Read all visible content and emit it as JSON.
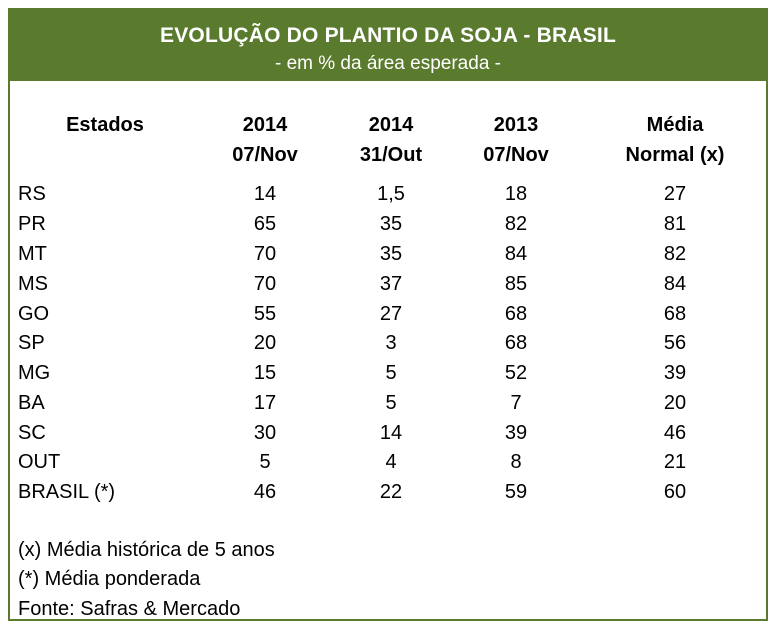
{
  "banner": {
    "title": "EVOLUÇÃO DO PLANTIO DA SOJA - BRASIL",
    "subtitle": "- em % da área esperada -"
  },
  "headers": {
    "estados": "Estados",
    "col1_line1": "2014",
    "col1_line2": "07/Nov",
    "col2_line1": "2014",
    "col2_line2": "31/Out",
    "col3_line1": "2013",
    "col3_line2": "07/Nov",
    "col4_line1": "Média",
    "col4_line2": "Normal (x)"
  },
  "rows": [
    {
      "state": "RS",
      "v2014_nov": "14",
      "v2014_out": "1,5",
      "v2013_nov": "18",
      "media": "27"
    },
    {
      "state": "PR",
      "v2014_nov": "65",
      "v2014_out": "35",
      "v2013_nov": "82",
      "media": "81"
    },
    {
      "state": "MT",
      "v2014_nov": "70",
      "v2014_out": "35",
      "v2013_nov": "84",
      "media": "82"
    },
    {
      "state": "MS",
      "v2014_nov": "70",
      "v2014_out": "37",
      "v2013_nov": "85",
      "media": "84"
    },
    {
      "state": "GO",
      "v2014_nov": "55",
      "v2014_out": "27",
      "v2013_nov": "68",
      "media": "68"
    },
    {
      "state": "SP",
      "v2014_nov": "20",
      "v2014_out": "3",
      "v2013_nov": "68",
      "media": "56"
    },
    {
      "state": "MG",
      "v2014_nov": "15",
      "v2014_out": "5",
      "v2013_nov": "52",
      "media": "39"
    },
    {
      "state": "BA",
      "v2014_nov": "17",
      "v2014_out": "5",
      "v2013_nov": "7",
      "media": "20"
    },
    {
      "state": "SC",
      "v2014_nov": "30",
      "v2014_out": "14",
      "v2013_nov": "39",
      "media": "46"
    },
    {
      "state": "OUT",
      "v2014_nov": "5",
      "v2014_out": "4",
      "v2013_nov": "8",
      "media": "21"
    },
    {
      "state": "BRASIL (*)",
      "v2014_nov": "46",
      "v2014_out": "22",
      "v2013_nov": "59",
      "media": "60"
    }
  ],
  "notes": {
    "media_historica": "(x) Média histórica de 5 anos",
    "media_ponderada": "(*) Média ponderada",
    "fonte": "Fonte: Safras & Mercado"
  },
  "colors": {
    "banner": "#5a7a2e",
    "border": "#5a7a2e",
    "banner_text": "#ffffff"
  }
}
